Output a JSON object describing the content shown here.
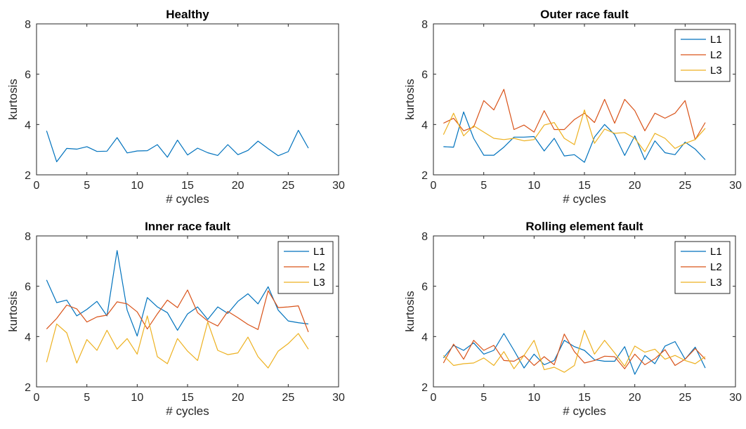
{
  "chart_data": [
    {
      "type": "line",
      "title": "Healthy",
      "xlabel": "# cycles",
      "ylabel": "kurtosis",
      "xlim": [
        0,
        30
      ],
      "ylim": [
        2,
        8
      ],
      "xticks": [
        0,
        5,
        10,
        15,
        20,
        25,
        30
      ],
      "yticks": [
        2,
        4,
        6,
        8
      ],
      "legend": "none",
      "x": [
        1,
        2,
        3,
        4,
        5,
        6,
        7,
        8,
        9,
        10,
        11,
        12,
        13,
        14,
        15,
        16,
        17,
        18,
        19,
        20,
        21,
        22,
        23,
        24,
        25,
        26,
        27
      ],
      "series": [
        {
          "name": "",
          "color": "#0072BD",
          "values": [
            3.75,
            2.52,
            3.05,
            3.02,
            3.12,
            2.93,
            2.94,
            3.48,
            2.87,
            2.95,
            2.96,
            3.2,
            2.7,
            3.38,
            2.79,
            3.06,
            2.88,
            2.77,
            3.2,
            2.8,
            2.97,
            3.34,
            3.04,
            2.76,
            2.92,
            3.77,
            3.06
          ]
        }
      ]
    },
    {
      "type": "line",
      "title": "Outer race fault",
      "xlabel": "# cycles",
      "ylabel": "kurtosis",
      "xlim": [
        0,
        30
      ],
      "ylim": [
        2,
        8
      ],
      "xticks": [
        0,
        5,
        10,
        15,
        20,
        25,
        30
      ],
      "yticks": [
        2,
        4,
        6,
        8
      ],
      "legend": "top-right",
      "x": [
        1,
        2,
        3,
        4,
        5,
        6,
        7,
        8,
        9,
        10,
        11,
        12,
        13,
        14,
        15,
        16,
        17,
        18,
        19,
        20,
        21,
        22,
        23,
        24,
        25,
        26,
        27
      ],
      "series": [
        {
          "name": "L1",
          "color": "#0072BD",
          "values": [
            3.12,
            3.1,
            4.5,
            3.45,
            2.78,
            2.78,
            3.1,
            3.5,
            3.5,
            3.52,
            2.95,
            3.45,
            2.75,
            2.8,
            2.5,
            3.5,
            4.0,
            3.6,
            2.77,
            3.55,
            2.6,
            3.35,
            2.88,
            2.8,
            3.3,
            3.02,
            2.6
          ]
        },
        {
          "name": "L2",
          "color": "#D95319",
          "values": [
            4.05,
            4.25,
            3.75,
            3.9,
            4.95,
            4.58,
            5.4,
            3.8,
            3.98,
            3.7,
            4.55,
            3.8,
            3.8,
            4.2,
            4.45,
            4.08,
            5.0,
            4.05,
            5.0,
            4.55,
            3.75,
            4.45,
            4.25,
            4.45,
            4.95,
            3.4,
            4.08
          ]
        },
        {
          "name": "L3",
          "color": "#EDB120",
          "values": [
            3.6,
            4.45,
            3.55,
            3.95,
            3.7,
            3.45,
            3.4,
            3.45,
            3.35,
            3.4,
            3.98,
            4.08,
            3.45,
            3.2,
            4.58,
            3.25,
            3.82,
            3.65,
            3.68,
            3.45,
            2.92,
            3.65,
            3.45,
            3.05,
            3.25,
            3.4,
            3.85
          ]
        }
      ]
    },
    {
      "type": "line",
      "title": "Inner race fault",
      "xlabel": "# cycles",
      "ylabel": "kurtosis",
      "xlim": [
        0,
        30
      ],
      "ylim": [
        2,
        8
      ],
      "xticks": [
        0,
        5,
        10,
        15,
        20,
        25,
        30
      ],
      "yticks": [
        2,
        4,
        6,
        8
      ],
      "legend": "top-right",
      "x": [
        1,
        2,
        3,
        4,
        5,
        6,
        7,
        8,
        9,
        10,
        11,
        12,
        13,
        14,
        15,
        16,
        17,
        18,
        19,
        20,
        21,
        22,
        23,
        24,
        25,
        26,
        27
      ],
      "series": [
        {
          "name": "L1",
          "color": "#0072BD",
          "values": [
            6.25,
            5.35,
            5.45,
            4.82,
            5.08,
            5.4,
            4.82,
            7.42,
            5.05,
            4.02,
            5.55,
            5.18,
            4.95,
            4.25,
            4.9,
            5.18,
            4.68,
            5.18,
            4.92,
            5.4,
            5.7,
            5.3,
            5.98,
            5.05,
            4.62,
            4.55,
            4.5
          ]
        },
        {
          "name": "L2",
          "color": "#D95319",
          "values": [
            4.3,
            4.72,
            5.25,
            5.1,
            4.58,
            4.78,
            4.85,
            5.38,
            5.3,
            4.98,
            4.3,
            4.9,
            5.45,
            5.15,
            5.85,
            4.95,
            4.62,
            4.42,
            5.0,
            4.75,
            4.48,
            4.28,
            5.82,
            5.15,
            5.18,
            5.22,
            4.18
          ]
        },
        {
          "name": "L3",
          "color": "#EDB120",
          "values": [
            2.98,
            4.5,
            4.15,
            2.95,
            3.88,
            3.45,
            4.25,
            3.5,
            3.92,
            3.3,
            4.82,
            3.2,
            2.92,
            3.92,
            3.42,
            3.05,
            4.58,
            3.45,
            3.28,
            3.35,
            3.98,
            3.2,
            2.75,
            3.42,
            3.72,
            4.12,
            3.5
          ]
        }
      ]
    },
    {
      "type": "line",
      "title": "Rolling element fault",
      "xlabel": "# cycles",
      "ylabel": "kurtosis",
      "xlim": [
        0,
        30
      ],
      "ylim": [
        2,
        8
      ],
      "xticks": [
        0,
        5,
        10,
        15,
        20,
        25,
        30
      ],
      "yticks": [
        2,
        4,
        6,
        8
      ],
      "legend": "top-right",
      "x": [
        1,
        2,
        3,
        4,
        5,
        6,
        7,
        8,
        9,
        10,
        11,
        12,
        13,
        14,
        15,
        16,
        17,
        18,
        19,
        20,
        21,
        22,
        23,
        24,
        25,
        26,
        27
      ],
      "series": [
        {
          "name": "L1",
          "color": "#0072BD",
          "values": [
            3.15,
            3.65,
            3.45,
            3.75,
            3.3,
            3.45,
            4.12,
            3.45,
            2.75,
            3.3,
            2.88,
            3.05,
            3.85,
            3.6,
            3.45,
            3.08,
            3.02,
            3.02,
            3.6,
            2.5,
            3.25,
            2.92,
            3.62,
            3.8,
            3.1,
            3.58,
            2.75
          ]
        },
        {
          "name": "L2",
          "color": "#D95319",
          "values": [
            2.95,
            3.7,
            3.1,
            3.85,
            3.45,
            3.65,
            3.05,
            3.02,
            3.25,
            2.85,
            3.2,
            2.88,
            4.1,
            3.4,
            2.95,
            3.05,
            3.22,
            3.2,
            2.72,
            3.3,
            2.88,
            3.12,
            3.48,
            2.85,
            3.1,
            3.52,
            3.1
          ]
        },
        {
          "name": "L3",
          "color": "#EDB120",
          "values": [
            3.25,
            2.85,
            2.92,
            2.95,
            3.15,
            2.85,
            3.4,
            2.72,
            3.25,
            3.85,
            2.68,
            2.78,
            2.58,
            2.85,
            4.25,
            3.3,
            3.85,
            3.35,
            2.82,
            3.62,
            3.38,
            3.5,
            3.1,
            3.25,
            3.05,
            2.92,
            3.2
          ]
        }
      ]
    }
  ]
}
